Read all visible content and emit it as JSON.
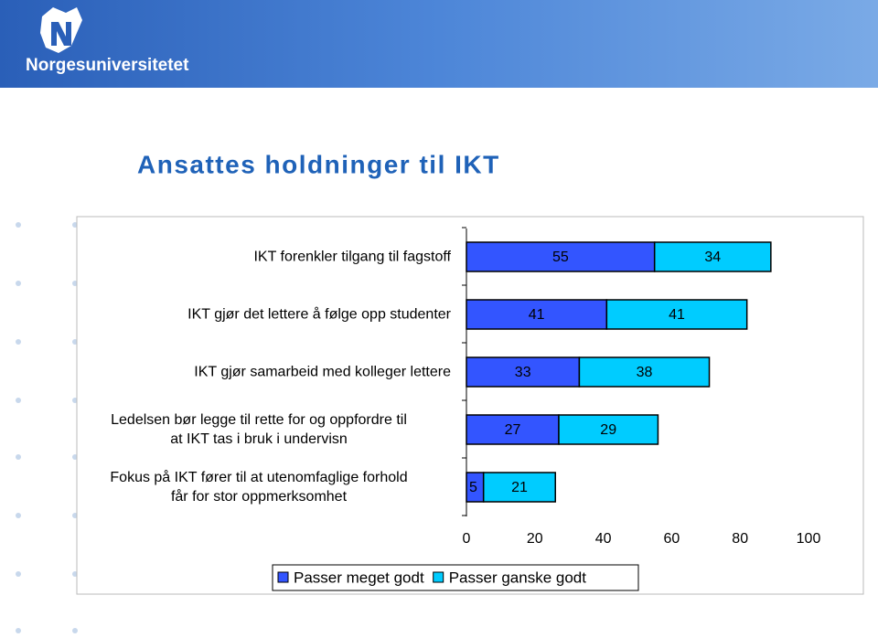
{
  "header": {
    "logo": "Norgesuniversitetet"
  },
  "chart_data": {
    "type": "stacked_barh",
    "title": "Ansattes holdninger til IKT",
    "categories": [
      "IKT forenkler tilgang til fagstoff",
      "IKT gjør det lettere å følge opp studenter",
      "IKT gjør samarbeid med kolleger lettere",
      "Ledelsen bør legge til rette for og oppfordre til\nat IKT tas i bruk i undervisn",
      "Fokus på IKT fører til at utenomfaglige forhold\nfår for stor oppmerksomhet"
    ],
    "series": [
      {
        "name": "Passer meget godt",
        "color": "#3355ff",
        "values": [
          55,
          41,
          33,
          27,
          5
        ]
      },
      {
        "name": "Passer ganske godt",
        "color": "#00ccff",
        "values": [
          34,
          41,
          38,
          29,
          21
        ]
      }
    ],
    "xlim": [
      0,
      100
    ],
    "xticks": [
      0,
      20,
      40,
      60,
      80,
      100
    ],
    "legend": "bottom"
  }
}
